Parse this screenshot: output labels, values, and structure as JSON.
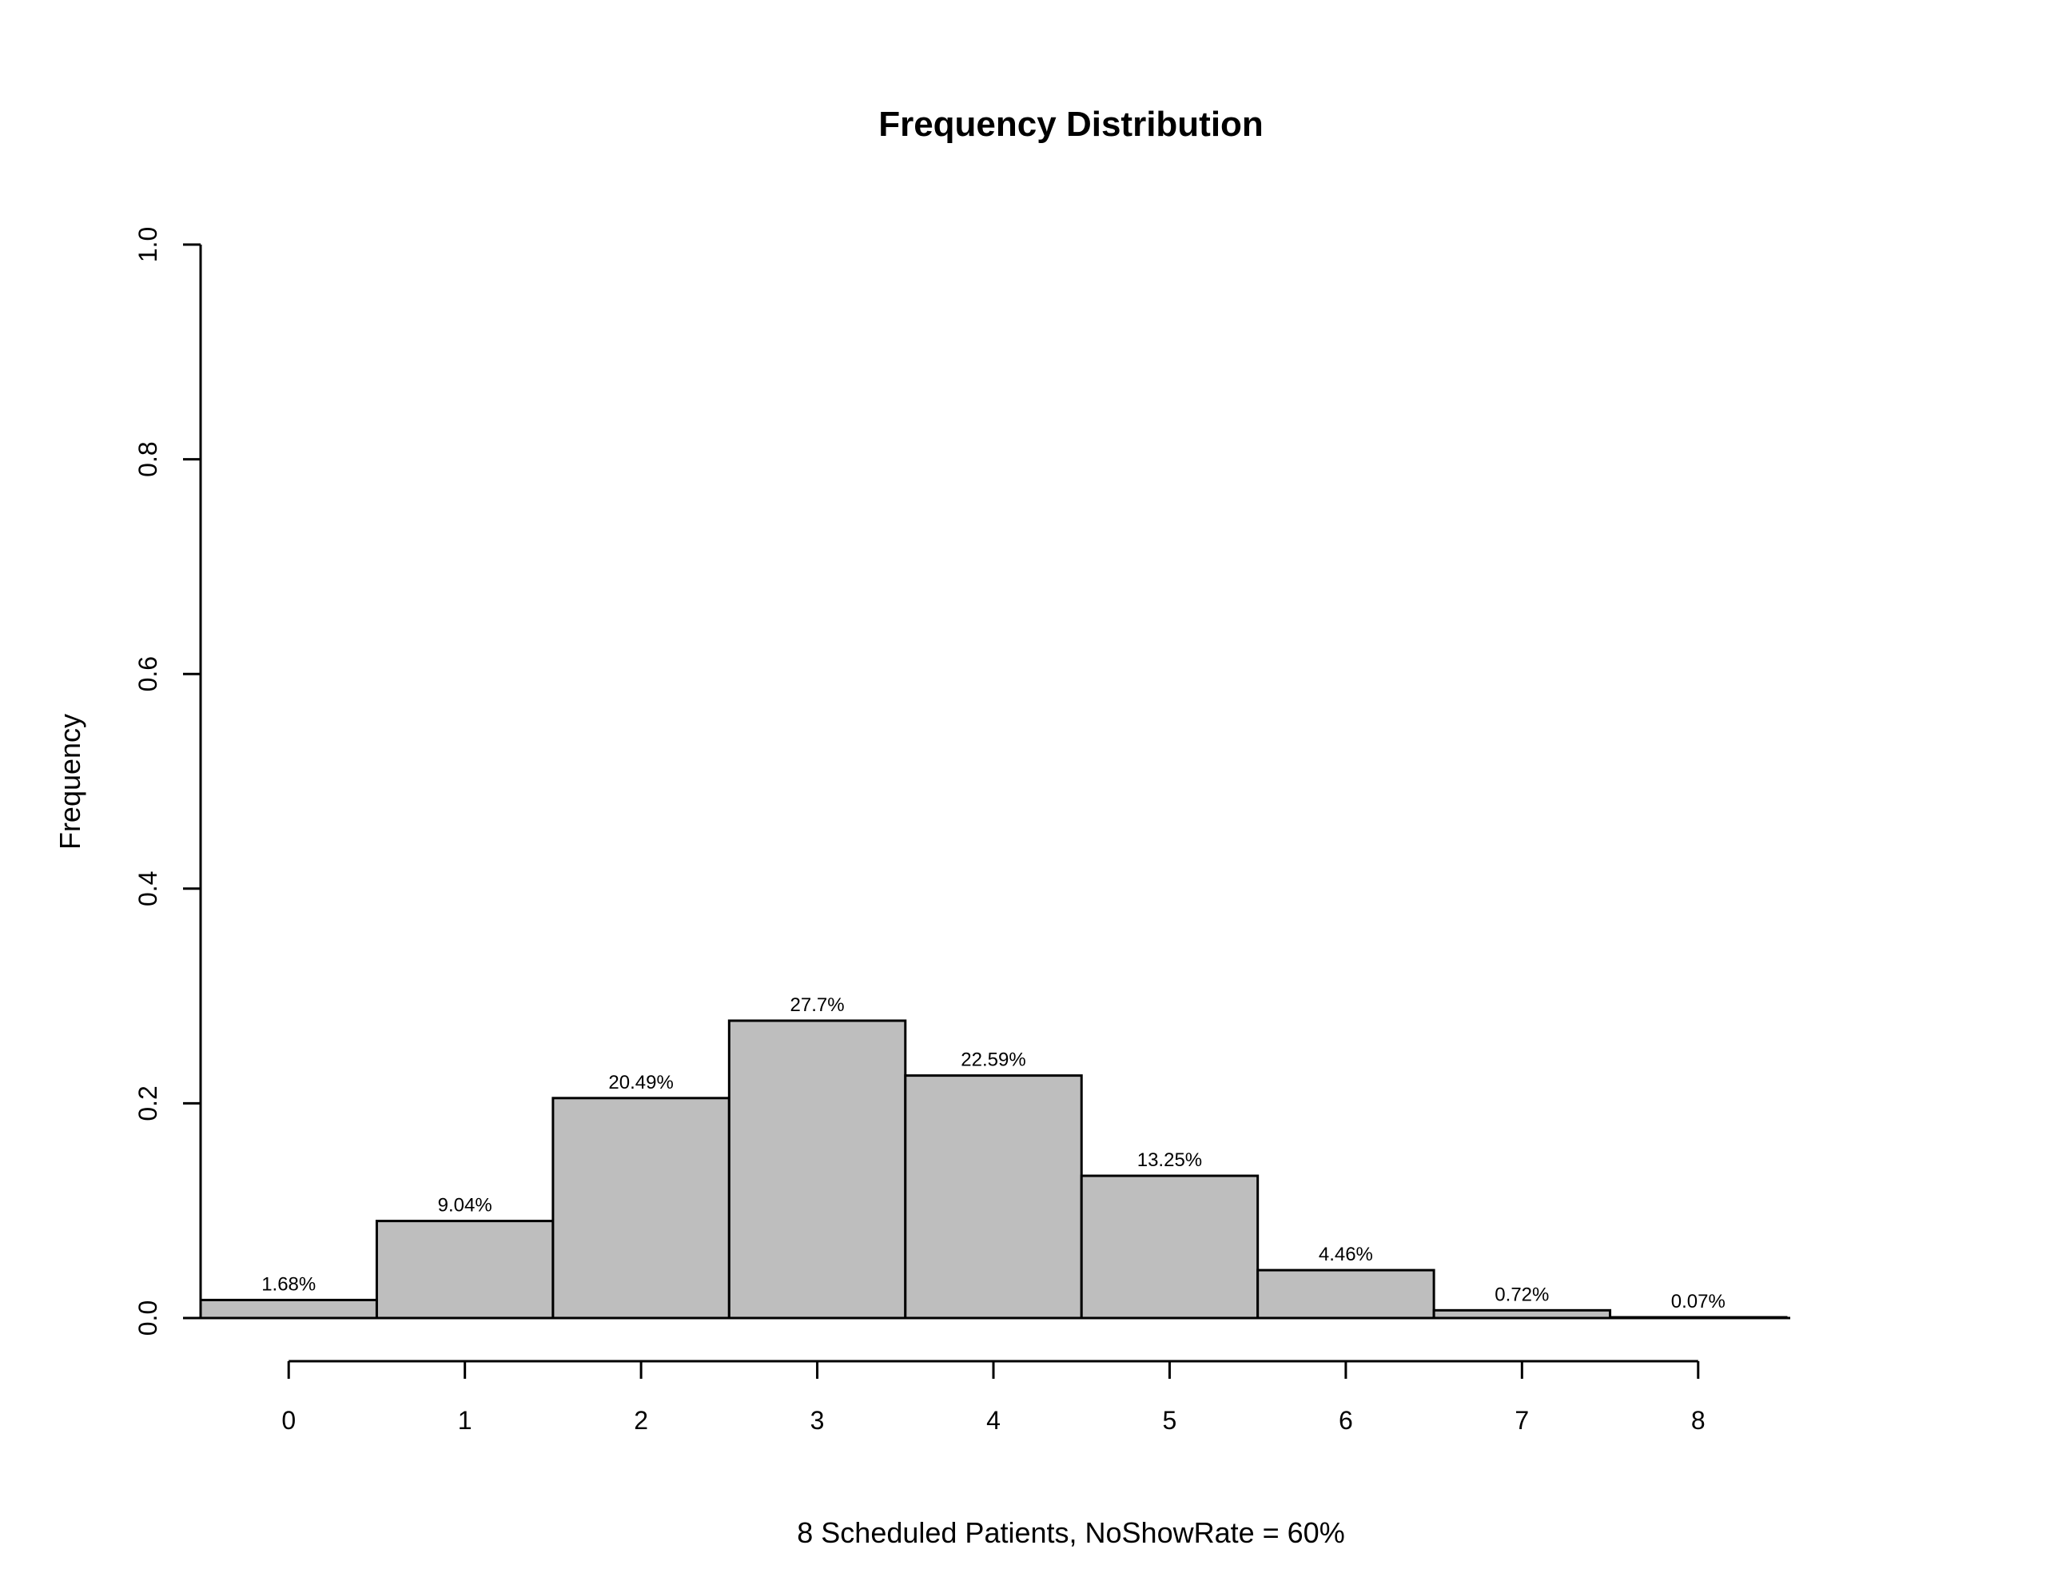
{
  "chart_data": {
    "type": "bar",
    "title": "Frequency Distribution",
    "xlabel": "8 Scheduled Patients,  NoShowRate = 60%",
    "ylabel": "Frequency",
    "categories": [
      "0",
      "1",
      "2",
      "3",
      "4",
      "5",
      "6",
      "7",
      "8"
    ],
    "values": [
      0.0168,
      0.0904,
      0.2049,
      0.277,
      0.2259,
      0.1325,
      0.0446,
      0.0072,
      0.0007
    ],
    "value_labels": [
      "1.68%",
      "9.04%",
      "20.49%",
      "27.7%",
      "22.59%",
      "13.25%",
      "4.46%",
      "0.72%",
      "0.07%"
    ],
    "ylim": [
      0,
      1
    ],
    "yticks": [
      "0.0",
      "0.2",
      "0.4",
      "0.6",
      "0.8",
      "1.0"
    ],
    "grid": false,
    "legend": "none",
    "bar_color": "#bebebe",
    "border_color": "#000000"
  }
}
